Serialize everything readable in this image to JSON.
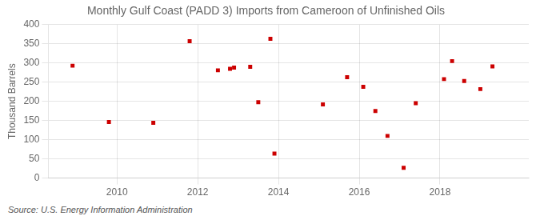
{
  "chart_data": {
    "type": "scatter",
    "title": "Monthly Gulf Coast (PADD 3) Imports from Cameroon of Unfinished Oils",
    "ylabel": "Thousand Barrels",
    "annotations": [
      "Source: U.S. Energy Information Administration"
    ],
    "x": [
      2008.9,
      2009.8,
      2010.9,
      2011.8,
      2012.5,
      2012.8,
      2012.9,
      2013.3,
      2013.5,
      2013.8,
      2013.9,
      2015.1,
      2015.7,
      2016.1,
      2016.4,
      2016.7,
      2017.1,
      2017.4,
      2018.1,
      2018.3,
      2018.6,
      2019.0,
      2019.3
    ],
    "values": [
      293,
      146,
      144,
      357,
      281,
      285,
      288,
      290,
      198,
      363,
      64,
      192,
      263,
      238,
      175,
      110,
      27,
      195,
      258,
      305,
      253,
      232,
      291
    ],
    "color": "#cc0000",
    "marker": "square",
    "xlim": [
      2008.3,
      2020.2
    ],
    "ylim": [
      0,
      400
    ],
    "xticks": [
      2010,
      2012,
      2014,
      2016,
      2018
    ],
    "yticks": [
      0,
      50,
      100,
      150,
      200,
      250,
      300,
      350,
      400
    ],
    "grid": true
  }
}
